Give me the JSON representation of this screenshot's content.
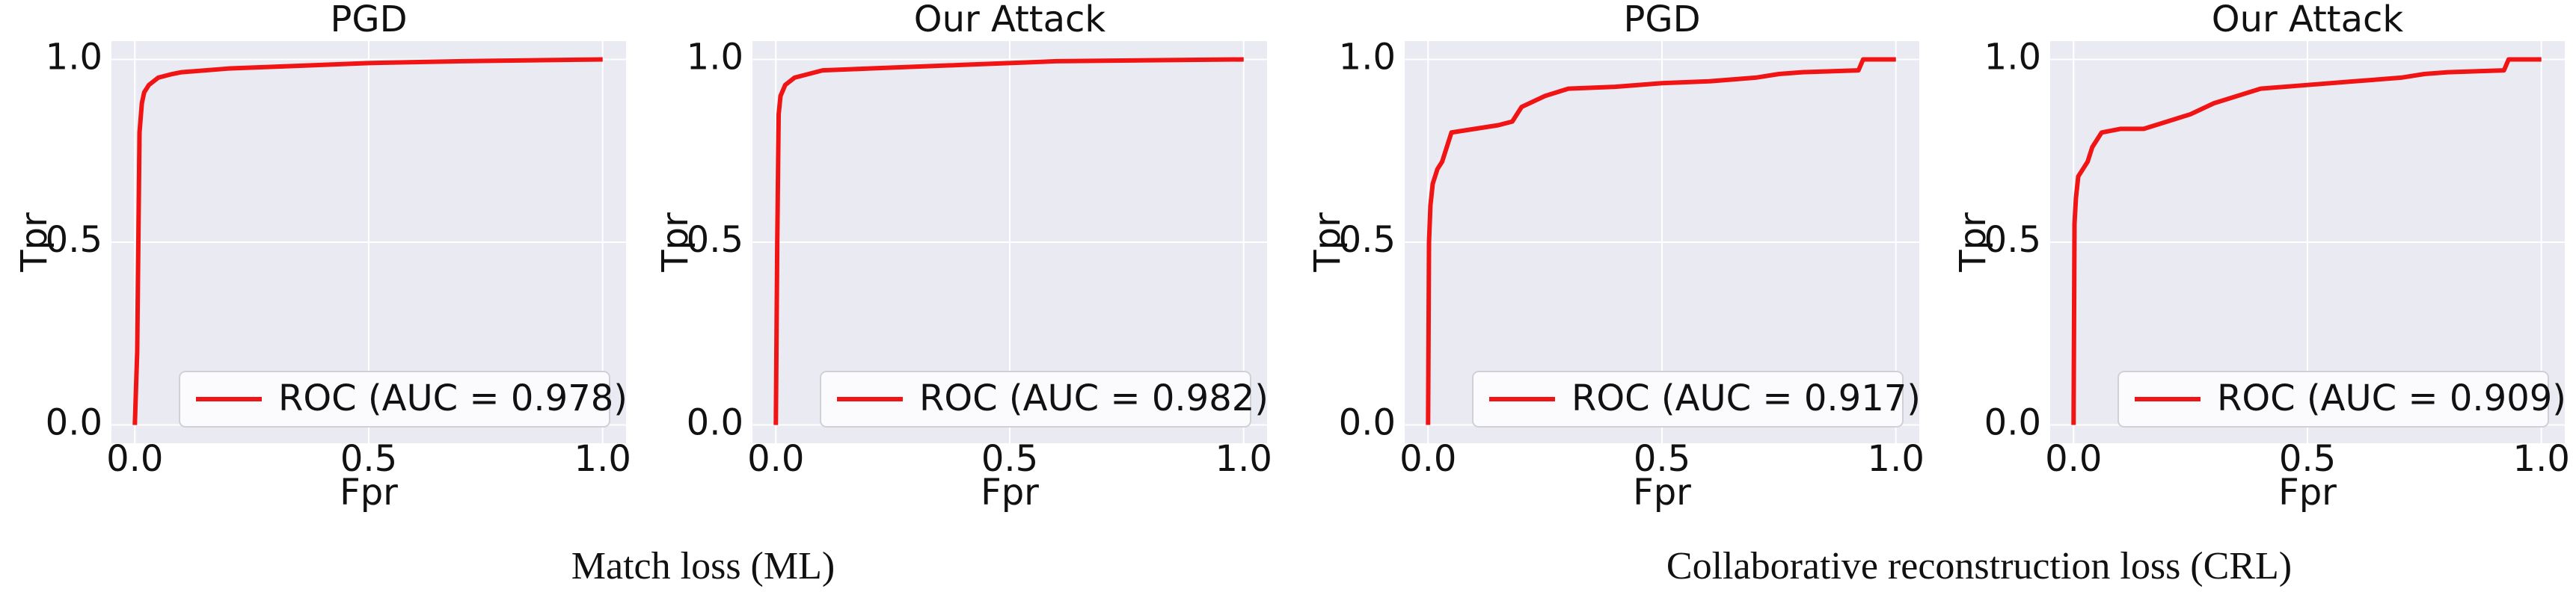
{
  "chart_data": [
    {
      "type": "line",
      "title": "PGD",
      "xlabel": "Fpr",
      "ylabel": "Tpr",
      "x": [
        0,
        0.005,
        0.01,
        0.015,
        0.02,
        0.03,
        0.05,
        0.08,
        0.1,
        0.2,
        0.3,
        0.5,
        0.7,
        1.0
      ],
      "series": [
        {
          "name": "ROC (AUC = 0.978)",
          "color": "#f01414",
          "values": [
            0,
            0.2,
            0.8,
            0.88,
            0.91,
            0.93,
            0.95,
            0.96,
            0.965,
            0.975,
            0.98,
            0.99,
            0.995,
            1.0
          ]
        }
      ],
      "xlim": [
        -0.05,
        1.05
      ],
      "ylim": [
        -0.05,
        1.05
      ],
      "xticks": [
        {
          "value": 0,
          "label": "0.0"
        },
        {
          "value": 0.5,
          "label": "0.5"
        },
        {
          "value": 1,
          "label": "1.0"
        }
      ],
      "yticks": [
        {
          "value": 0,
          "label": "0.0"
        },
        {
          "value": 0.5,
          "label": "0.5"
        },
        {
          "value": 1,
          "label": "1.0"
        }
      ],
      "grid": true,
      "legend": "lower right"
    },
    {
      "type": "line",
      "title": "Our Attack",
      "xlabel": "Fpr",
      "ylabel": "Tpr",
      "x": [
        0,
        0.003,
        0.006,
        0.01,
        0.02,
        0.04,
        0.07,
        0.1,
        0.2,
        0.4,
        0.6,
        1.0
      ],
      "series": [
        {
          "name": "ROC (AUC = 0.982)",
          "color": "#f01414",
          "values": [
            0,
            0.5,
            0.85,
            0.9,
            0.93,
            0.95,
            0.96,
            0.97,
            0.975,
            0.985,
            0.995,
            1.0
          ]
        }
      ],
      "xlim": [
        -0.05,
        1.05
      ],
      "ylim": [
        -0.05,
        1.05
      ],
      "xticks": [
        {
          "value": 0,
          "label": "0.0"
        },
        {
          "value": 0.5,
          "label": "0.5"
        },
        {
          "value": 1,
          "label": "1.0"
        }
      ],
      "yticks": [
        {
          "value": 0,
          "label": "0.0"
        },
        {
          "value": 0.5,
          "label": "0.5"
        },
        {
          "value": 1,
          "label": "1.0"
        }
      ],
      "grid": true,
      "legend": "lower right"
    },
    {
      "type": "line",
      "title": "PGD",
      "xlabel": "Fpr",
      "ylabel": "Tpr",
      "x": [
        0,
        0.002,
        0.005,
        0.01,
        0.02,
        0.03,
        0.04,
        0.05,
        0.1,
        0.15,
        0.18,
        0.2,
        0.25,
        0.3,
        0.4,
        0.5,
        0.6,
        0.7,
        0.75,
        0.8,
        0.92,
        0.93,
        1.0
      ],
      "series": [
        {
          "name": "ROC (AUC = 0.917)",
          "color": "#f01414",
          "values": [
            0,
            0.5,
            0.6,
            0.66,
            0.7,
            0.72,
            0.76,
            0.8,
            0.81,
            0.82,
            0.83,
            0.87,
            0.9,
            0.92,
            0.925,
            0.935,
            0.94,
            0.95,
            0.96,
            0.965,
            0.97,
            1.0,
            1.0
          ]
        }
      ],
      "xlim": [
        -0.05,
        1.05
      ],
      "ylim": [
        -0.05,
        1.05
      ],
      "xticks": [
        {
          "value": 0,
          "label": "0.0"
        },
        {
          "value": 0.5,
          "label": "0.5"
        },
        {
          "value": 1,
          "label": "1.0"
        }
      ],
      "yticks": [
        {
          "value": 0,
          "label": "0.0"
        },
        {
          "value": 0.5,
          "label": "0.5"
        },
        {
          "value": 1,
          "label": "1.0"
        }
      ],
      "grid": true,
      "legend": "lower right"
    },
    {
      "type": "line",
      "title": "Our Attack",
      "xlabel": "Fpr",
      "ylabel": "Tpr",
      "x": [
        0,
        0.002,
        0.005,
        0.01,
        0.02,
        0.03,
        0.04,
        0.06,
        0.1,
        0.15,
        0.2,
        0.25,
        0.3,
        0.35,
        0.4,
        0.5,
        0.6,
        0.7,
        0.75,
        0.8,
        0.92,
        0.93,
        1.0
      ],
      "series": [
        {
          "name": "ROC (AUC = 0.909)",
          "color": "#f01414",
          "values": [
            0,
            0.55,
            0.62,
            0.68,
            0.7,
            0.72,
            0.76,
            0.8,
            0.81,
            0.81,
            0.83,
            0.85,
            0.88,
            0.9,
            0.92,
            0.93,
            0.94,
            0.95,
            0.96,
            0.965,
            0.97,
            1.0,
            1.0
          ]
        }
      ],
      "xlim": [
        -0.05,
        1.05
      ],
      "ylim": [
        -0.05,
        1.05
      ],
      "xticks": [
        {
          "value": 0,
          "label": "0.0"
        },
        {
          "value": 0.5,
          "label": "0.5"
        },
        {
          "value": 1,
          "label": "1.0"
        }
      ],
      "yticks": [
        {
          "value": 0,
          "label": "0.0"
        },
        {
          "value": 0.5,
          "label": "0.5"
        },
        {
          "value": 1,
          "label": "1.0"
        }
      ],
      "grid": true,
      "legend": "lower right"
    }
  ],
  "captions": [
    "Match loss (ML)",
    "Collaborative reconstruction loss (CRL)"
  ]
}
